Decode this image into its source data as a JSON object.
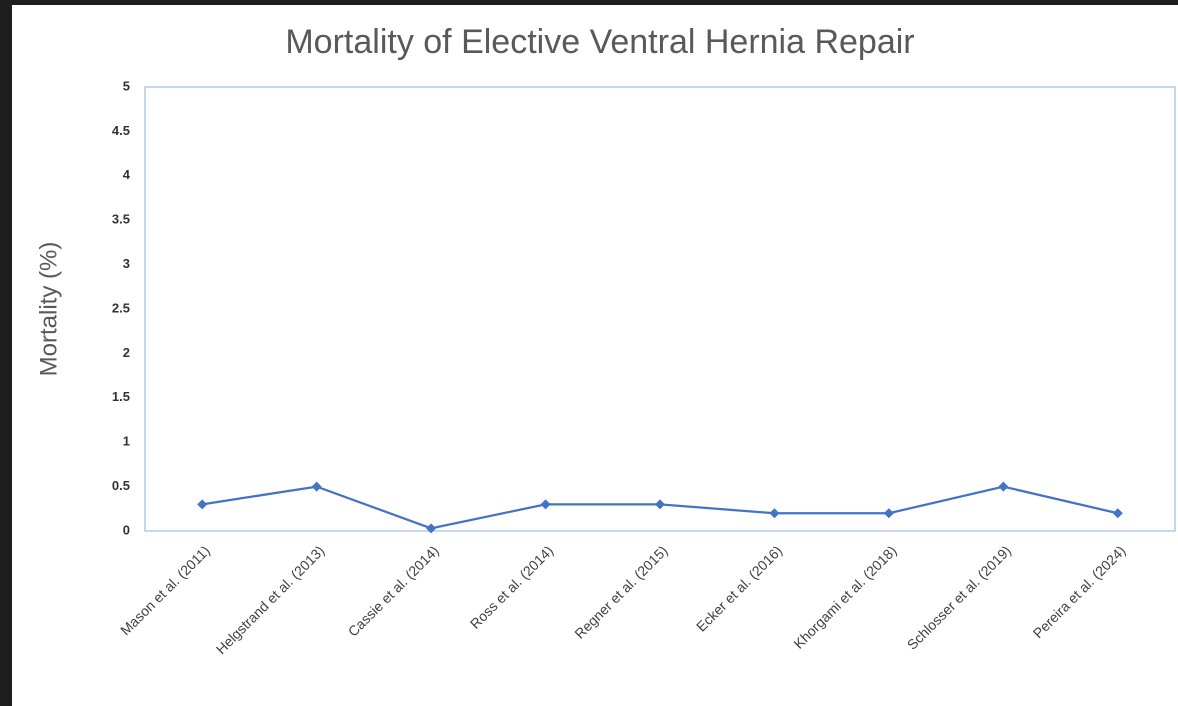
{
  "chart_data": {
    "type": "line",
    "title": "Mortality of Elective Ventral Hernia Repair",
    "y_label": "Mortality (%)",
    "categories": [
      "Mason et al. (2011)",
      "Helgstrand et al. (2013)",
      "Cassie et al. (2014)",
      "Ross et al. (2014)",
      "Regner et al. (2015)",
      "Ecker et al. (2016)",
      "Khorgami et al. (2018)",
      "Schlosser et al. (2019)",
      "Pereira et al. (2024)"
    ],
    "values": [
      0.3,
      0.5,
      0.03,
      0.3,
      0.3,
      0.2,
      0.2,
      0.5,
      0.2
    ],
    "color": "#4472c4",
    "ylim": [
      0,
      5
    ],
    "yticks": [
      0,
      0.5,
      1,
      1.5,
      2,
      2.5,
      3,
      3.5,
      4,
      4.5,
      5
    ],
    "grid": false
  }
}
